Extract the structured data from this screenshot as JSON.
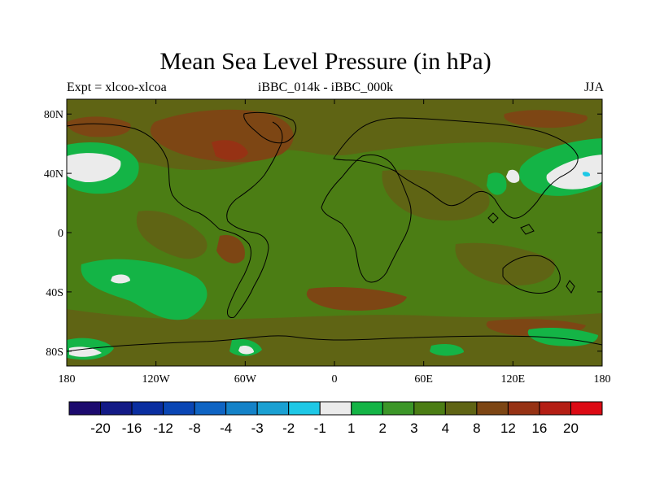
{
  "title": "Mean Sea Level Pressure (in hPa)",
  "subtitle_left": "Expt = xlcoo-xlcoa",
  "subtitle_center": "iBBC_014k - iBBC_000k",
  "subtitle_right": "JJA",
  "lat_ticks": [
    {
      "value": 80,
      "label": "80N"
    },
    {
      "value": 40,
      "label": "40N"
    },
    {
      "value": 0,
      "label": "0"
    },
    {
      "value": -40,
      "label": "40S"
    },
    {
      "value": -80,
      "label": "80S"
    }
  ],
  "lon_ticks": [
    {
      "value": -180,
      "label": "180"
    },
    {
      "value": -120,
      "label": "120W"
    },
    {
      "value": -60,
      "label": "60W"
    },
    {
      "value": 0,
      "label": "0"
    },
    {
      "value": 60,
      "label": "60E"
    },
    {
      "value": 120,
      "label": "120E"
    },
    {
      "value": 180,
      "label": "180"
    }
  ],
  "colorbar": {
    "colors": [
      "#1c0a6e",
      "#131a86",
      "#0a2ea0",
      "#0a46b4",
      "#0f64c3",
      "#1482c8",
      "#1aa0d2",
      "#1ec8e6",
      "#ebebeb",
      "#14b446",
      "#3c9628",
      "#4b7d14",
      "#5f6414",
      "#7d4614",
      "#963214",
      "#b41e14",
      "#dc0a14"
    ],
    "labels": [
      "-20",
      "-16",
      "-12",
      "-8",
      "-4",
      "-3",
      "-2",
      "-1",
      "1",
      "2",
      "3",
      "4",
      "8",
      "12",
      "16",
      "20"
    ]
  }
}
